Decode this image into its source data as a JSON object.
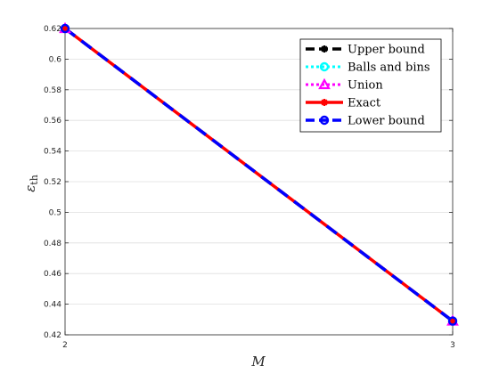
{
  "chart_data": {
    "type": "line",
    "title": "",
    "xlabel": "M",
    "ylabel_main": "ε",
    "ylabel_sub": "th",
    "x": [
      2,
      3
    ],
    "xticks": [
      "2",
      "3"
    ],
    "xlim": [
      2,
      3
    ],
    "ylim": [
      0.42,
      0.62
    ],
    "yticks": [
      "0.42",
      "0.44",
      "0.46",
      "0.48",
      "0.5",
      "0.52",
      "0.54",
      "0.56",
      "0.58",
      "0.6",
      "0.62"
    ],
    "grid": "horizontal",
    "legend_position": "top-right",
    "series": [
      {
        "name": "Upper bound",
        "values": [
          0.62,
          0.429
        ],
        "color": "#000000",
        "dash": "dashed",
        "marker": "asterisk"
      },
      {
        "name": "Balls and bins",
        "values": [
          0.62,
          0.429
        ],
        "color": "#00ffff",
        "dash": "dotted",
        "marker": "circle"
      },
      {
        "name": "Union",
        "values": [
          0.62,
          0.429
        ],
        "color": "#ff00ff",
        "dash": "dotted",
        "marker": "triangle"
      },
      {
        "name": "Exact",
        "values": [
          0.62,
          0.429
        ],
        "color": "#ff0000",
        "dash": "solid",
        "marker": "asterisk"
      },
      {
        "name": "Lower bound",
        "values": [
          0.62,
          0.429
        ],
        "color": "#0000ff",
        "dash": "dashed",
        "marker": "circle"
      }
    ]
  }
}
